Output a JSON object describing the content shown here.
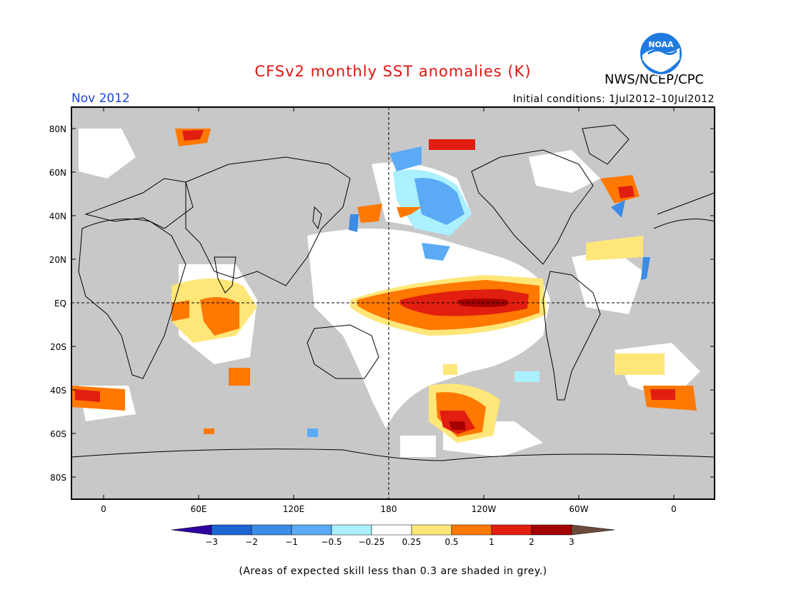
{
  "header": {
    "title": "CFSv2 monthly SST anomalies (K)",
    "month": "Nov 2012",
    "initial_conditions": "Initial conditions: 1Jul2012–10Jul2012",
    "agency": "NWS/NCEP/CPC",
    "logo_text": "NOAA"
  },
  "map": {
    "lat_labels": [
      "80N",
      "60N",
      "40N",
      "20N",
      "EQ",
      "20S",
      "40S",
      "60S",
      "80S"
    ],
    "lon_labels": [
      "0",
      "60E",
      "120E",
      "180",
      "120W",
      "60W",
      "0"
    ],
    "colors": {
      "land": "#c8c8c8",
      "ocean_skill": "#ffffff",
      "coast": "#000000"
    }
  },
  "colorbar": {
    "labels": [
      "−3",
      "−2",
      "−1",
      "−0.5",
      "−0.25",
      "0.25",
      "0.5",
      "1",
      "2",
      "3"
    ],
    "colors": [
      "#2d00a0",
      "#1c64d2",
      "#3c8ce6",
      "#5aaaf5",
      "#aaf0ff",
      "#ffffff",
      "#ffe678",
      "#ff7800",
      "#e11e0f",
      "#a50000",
      "#6e4a3c"
    ]
  },
  "footer": {
    "note": "(Areas of expected skill less than 0.3 are shaded in grey.)"
  }
}
